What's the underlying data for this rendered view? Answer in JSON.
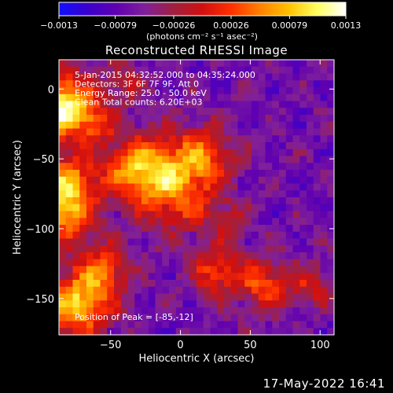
{
  "chart_data": {
    "type": "heatmap",
    "title": "Reconstructed RHESSI Image",
    "xlabel": "Heliocentric X (arcsec)",
    "ylabel": "Heliocentric Y (arcsec)",
    "xlim": [
      -87,
      110
    ],
    "ylim": [
      -176,
      21
    ],
    "x_ticks": [
      {
        "value": -50,
        "label": "−50"
      },
      {
        "value": 0,
        "label": "0"
      },
      {
        "value": 50,
        "label": "50"
      },
      {
        "value": 100,
        "label": "100"
      }
    ],
    "y_ticks": [
      {
        "value": 0,
        "label": "0"
      },
      {
        "value": -50,
        "label": "−50"
      },
      {
        "value": -100,
        "label": "−100"
      },
      {
        "value": -150,
        "label": "−150"
      }
    ],
    "colorbar": {
      "min": -0.0013,
      "max": 0.0013,
      "ticks": [
        {
          "value": -0.0013,
          "label": "−0.0013"
        },
        {
          "value": -0.00079,
          "label": "−0.00079"
        },
        {
          "value": -0.00026,
          "label": "−0.00026"
        },
        {
          "value": 0.00026,
          "label": "0.00026"
        },
        {
          "value": 0.00079,
          "label": "0.00079"
        },
        {
          "value": 0.0013,
          "label": "0.0013"
        }
      ],
      "units_label": "(photons cm⁻² s⁻¹ asec⁻²)",
      "colors": [
        "#1010ff",
        "#3a00cc",
        "#6000b0",
        "#80209a",
        "#a02040",
        "#d01010",
        "#ff3000",
        "#ff8000",
        "#ffc000",
        "#ffff60",
        "#ffffff"
      ]
    },
    "annotations": [
      "5-Jan-2015 04:32:52.000 to 04:35:24.000",
      "Detectors: 3F 6F 7F 9F, Att 0",
      "Energy Range: 25.0 - 50.0 keV",
      "Clean     Total counts: 6.20E+03"
    ],
    "peak_label": "Position of Peak = [-85,-12]",
    "peak_position": [
      -85,
      -12
    ],
    "grid_size": 40,
    "grid": false
  },
  "footer": {
    "timestamp": "17-May-2022 16:41"
  }
}
